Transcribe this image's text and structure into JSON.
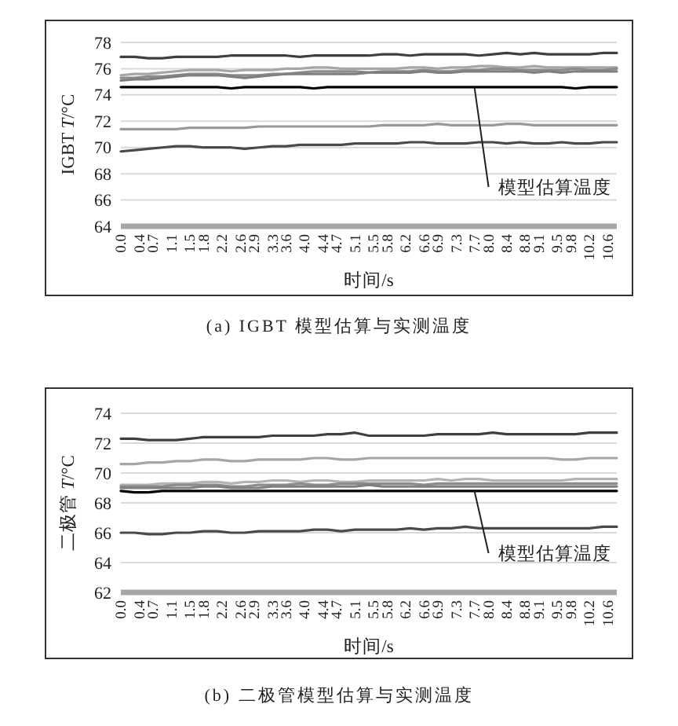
{
  "chart_data": [
    {
      "type": "line",
      "title": "(a) IGBT 模型估算与实测温度",
      "xlabel": "时间/s",
      "ylabel": "IGBT *T*/°C",
      "x": [
        0,
        0.3,
        0.6,
        0.9,
        1.2,
        1.5,
        1.8,
        2.1,
        2.4,
        2.7,
        3,
        3.3,
        3.6,
        3.9,
        4.2,
        4.5,
        4.8,
        5.1,
        5.4,
        5.7,
        6,
        6.3,
        6.6,
        6.9,
        7.2,
        7.5,
        7.8,
        8.1,
        8.4,
        8.7,
        9,
        9.3,
        9.6,
        9.9,
        10.2,
        10.5,
        10.8
      ],
      "xlim": [
        0,
        10.8
      ],
      "xticks": [
        {
          "value": 0,
          "label": "0.0"
        },
        {
          "value": 0.4,
          "label": "0.4"
        },
        {
          "value": 0.7,
          "label": "0.7"
        },
        {
          "value": 1.1,
          "label": "1.1"
        },
        {
          "value": 1.5,
          "label": "1.5"
        },
        {
          "value": 1.8,
          "label": "1.8"
        },
        {
          "value": 2.2,
          "label": "2.2"
        },
        {
          "value": 2.6,
          "label": "2.6"
        },
        {
          "value": 2.9,
          "label": "2.9"
        },
        {
          "value": 3.3,
          "label": "3.3"
        },
        {
          "value": 3.6,
          "label": "3.6"
        },
        {
          "value": 4,
          "label": "4.0"
        },
        {
          "value": 4.4,
          "label": "4.4"
        },
        {
          "value": 4.7,
          "label": "4.7"
        },
        {
          "value": 5.1,
          "label": "5.1"
        },
        {
          "value": 5.5,
          "label": "5.5"
        },
        {
          "value": 5.8,
          "label": "5.8"
        },
        {
          "value": 6.2,
          "label": "6.2"
        },
        {
          "value": 6.6,
          "label": "6.6"
        },
        {
          "value": 6.9,
          "label": "6.9"
        },
        {
          "value": 7.3,
          "label": "7.3"
        },
        {
          "value": 7.7,
          "label": "7.7"
        },
        {
          "value": 8,
          "label": "8.0"
        },
        {
          "value": 8.4,
          "label": "8.4"
        },
        {
          "value": 8.8,
          "label": "8.8"
        },
        {
          "value": 9.1,
          "label": "9.1"
        },
        {
          "value": 9.5,
          "label": "9.5"
        },
        {
          "value": 9.8,
          "label": "9.8"
        },
        {
          "value": 10.2,
          "label": "10.2"
        },
        {
          "value": 10.6,
          "label": "10.6"
        }
      ],
      "ylim": [
        64,
        78
      ],
      "yticks": [
        64,
        66,
        68,
        70,
        72,
        74,
        76,
        78
      ],
      "grid": "y",
      "marker": "none",
      "line_style": "solid",
      "annotations": [
        {
          "text": "模型估算温度",
          "x": 7.7,
          "y": 74.6
        }
      ],
      "series": [
        {
          "color": "#3f3f3f",
          "values": [
            76.9,
            76.9,
            76.8,
            76.8,
            76.9,
            76.9,
            76.9,
            76.9,
            77.0,
            77.0,
            77.0,
            77.0,
            77.0,
            76.9,
            77.0,
            77.0,
            77.0,
            77.0,
            77.0,
            77.1,
            77.1,
            77.0,
            77.1,
            77.1,
            77.1,
            77.1,
            77.0,
            77.1,
            77.2,
            77.1,
            77.2,
            77.1,
            77.1,
            77.1,
            77.1,
            77.2,
            77.2
          ]
        },
        {
          "color": "#a6a6a6",
          "values": [
            75.5,
            75.6,
            75.6,
            75.7,
            75.8,
            75.9,
            75.9,
            75.9,
            75.8,
            75.9,
            75.9,
            75.9,
            76.0,
            76.0,
            76.1,
            76.1,
            76.0,
            76.0,
            76.0,
            76.0,
            76.0,
            76.1,
            76.1,
            76.0,
            76.1,
            76.1,
            76.2,
            76.2,
            76.1,
            76.1,
            76.2,
            76.1,
            76.1,
            76.1,
            76.1,
            76.1,
            76.1
          ]
        },
        {
          "color": "#8c8c8c",
          "values": [
            75.3,
            75.3,
            75.4,
            75.4,
            75.5,
            75.6,
            75.6,
            75.6,
            75.5,
            75.5,
            75.5,
            75.6,
            75.6,
            75.7,
            75.8,
            75.8,
            75.8,
            75.8,
            75.7,
            75.8,
            75.8,
            75.8,
            75.9,
            75.8,
            75.8,
            75.9,
            75.9,
            76.0,
            76.0,
            75.9,
            75.9,
            75.9,
            75.9,
            76.0,
            75.9,
            75.9,
            76.0
          ]
        },
        {
          "color": "#7f7f7f",
          "values": [
            75.1,
            75.2,
            75.2,
            75.3,
            75.4,
            75.5,
            75.5,
            75.5,
            75.4,
            75.3,
            75.4,
            75.5,
            75.6,
            75.6,
            75.6,
            75.6,
            75.6,
            75.6,
            75.7,
            75.7,
            75.7,
            75.7,
            75.8,
            75.7,
            75.7,
            75.8,
            75.8,
            75.8,
            75.8,
            75.8,
            75.7,
            75.8,
            75.7,
            75.8,
            75.8,
            75.8,
            75.8
          ]
        },
        {
          "color": "#000000",
          "values": [
            74.6,
            74.6,
            74.6,
            74.6,
            74.6,
            74.6,
            74.6,
            74.6,
            74.5,
            74.6,
            74.6,
            74.6,
            74.6,
            74.6,
            74.5,
            74.6,
            74.6,
            74.6,
            74.6,
            74.6,
            74.6,
            74.6,
            74.6,
            74.6,
            74.6,
            74.6,
            74.6,
            74.6,
            74.6,
            74.6,
            74.6,
            74.6,
            74.6,
            74.5,
            74.6,
            74.6,
            74.6
          ]
        },
        {
          "color": "#999999",
          "values": [
            71.4,
            71.4,
            71.4,
            71.4,
            71.4,
            71.5,
            71.5,
            71.5,
            71.5,
            71.5,
            71.6,
            71.6,
            71.6,
            71.6,
            71.6,
            71.6,
            71.6,
            71.6,
            71.6,
            71.7,
            71.7,
            71.7,
            71.7,
            71.8,
            71.7,
            71.7,
            71.7,
            71.7,
            71.8,
            71.8,
            71.7,
            71.7,
            71.7,
            71.7,
            71.7,
            71.7,
            71.7
          ]
        },
        {
          "color": "#4a4a4a",
          "values": [
            69.7,
            69.8,
            69.9,
            70.0,
            70.1,
            70.1,
            70.0,
            70.0,
            70.0,
            69.9,
            70.0,
            70.1,
            70.1,
            70.2,
            70.2,
            70.2,
            70.2,
            70.3,
            70.3,
            70.3,
            70.3,
            70.4,
            70.4,
            70.3,
            70.3,
            70.3,
            70.4,
            70.4,
            70.3,
            70.4,
            70.3,
            70.3,
            70.4,
            70.3,
            70.3,
            70.4,
            70.4
          ]
        }
      ]
    },
    {
      "type": "line",
      "title": "(b) 二极管模型估算与实测温度",
      "xlabel": "时间/s",
      "ylabel": "二极管 *T*/°C",
      "x": [
        0,
        0.3,
        0.6,
        0.9,
        1.2,
        1.5,
        1.8,
        2.1,
        2.4,
        2.7,
        3,
        3.3,
        3.6,
        3.9,
        4.2,
        4.5,
        4.8,
        5.1,
        5.4,
        5.7,
        6,
        6.3,
        6.6,
        6.9,
        7.2,
        7.5,
        7.8,
        8.1,
        8.4,
        8.7,
        9,
        9.3,
        9.6,
        9.9,
        10.2,
        10.5,
        10.8
      ],
      "xlim": [
        0,
        10.8
      ],
      "xticks": [
        {
          "value": 0,
          "label": "0.0"
        },
        {
          "value": 0.4,
          "label": "0.4"
        },
        {
          "value": 0.7,
          "label": "0.7"
        },
        {
          "value": 1.1,
          "label": "1.1"
        },
        {
          "value": 1.5,
          "label": "1.5"
        },
        {
          "value": 1.8,
          "label": "1.8"
        },
        {
          "value": 2.2,
          "label": "2.2"
        },
        {
          "value": 2.6,
          "label": "2.6"
        },
        {
          "value": 2.9,
          "label": "2.9"
        },
        {
          "value": 3.3,
          "label": "3.3"
        },
        {
          "value": 3.6,
          "label": "3.6"
        },
        {
          "value": 4,
          "label": "4.0"
        },
        {
          "value": 4.4,
          "label": "4.4"
        },
        {
          "value": 4.7,
          "label": "4.7"
        },
        {
          "value": 5.1,
          "label": "5.1"
        },
        {
          "value": 5.5,
          "label": "5.5"
        },
        {
          "value": 5.8,
          "label": "5.8"
        },
        {
          "value": 6.2,
          "label": "6.2"
        },
        {
          "value": 6.6,
          "label": "6.6"
        },
        {
          "value": 6.9,
          "label": "6.9"
        },
        {
          "value": 7.3,
          "label": "7.3"
        },
        {
          "value": 7.7,
          "label": "7.7"
        },
        {
          "value": 8,
          "label": "8.0"
        },
        {
          "value": 8.4,
          "label": "8.4"
        },
        {
          "value": 8.8,
          "label": "8.8"
        },
        {
          "value": 9.1,
          "label": "9.1"
        },
        {
          "value": 9.5,
          "label": "9.5"
        },
        {
          "value": 9.8,
          "label": "9.8"
        },
        {
          "value": 10.2,
          "label": "10.2"
        },
        {
          "value": 10.6,
          "label": "10.6"
        }
      ],
      "ylim": [
        62,
        74
      ],
      "yticks": [
        62,
        64,
        66,
        68,
        70,
        72,
        74
      ],
      "grid": "y",
      "marker": "none",
      "line_style": "solid",
      "annotations": [
        {
          "text": "模型估算温度",
          "x": 7.7,
          "y": 68.8
        }
      ],
      "series": [
        {
          "color": "#3f3f3f",
          "values": [
            72.3,
            72.3,
            72.2,
            72.2,
            72.2,
            72.3,
            72.4,
            72.4,
            72.4,
            72.4,
            72.4,
            72.5,
            72.5,
            72.5,
            72.5,
            72.6,
            72.6,
            72.7,
            72.5,
            72.5,
            72.5,
            72.5,
            72.5,
            72.6,
            72.6,
            72.6,
            72.6,
            72.7,
            72.6,
            72.6,
            72.6,
            72.6,
            72.6,
            72.6,
            72.7,
            72.7,
            72.7
          ]
        },
        {
          "color": "#a6a6a6",
          "values": [
            70.6,
            70.6,
            70.7,
            70.7,
            70.8,
            70.8,
            70.9,
            70.9,
            70.8,
            70.8,
            70.9,
            70.9,
            70.9,
            70.9,
            71.0,
            71.0,
            70.9,
            70.9,
            71.0,
            71.0,
            71.0,
            71.0,
            71.0,
            71.0,
            71.0,
            71.0,
            71.0,
            71.0,
            71.0,
            71.0,
            71.0,
            71.0,
            70.9,
            70.9,
            71.0,
            71.0,
            71.0
          ]
        },
        {
          "color": "#b3b3b3",
          "values": [
            69.2,
            69.2,
            69.2,
            69.3,
            69.3,
            69.3,
            69.4,
            69.4,
            69.3,
            69.4,
            69.4,
            69.5,
            69.5,
            69.4,
            69.5,
            69.5,
            69.4,
            69.4,
            69.5,
            69.5,
            69.5,
            69.5,
            69.5,
            69.6,
            69.5,
            69.6,
            69.6,
            69.5,
            69.5,
            69.5,
            69.5,
            69.5,
            69.5,
            69.6,
            69.6,
            69.6,
            69.6
          ]
        },
        {
          "color": "#8c8c8c",
          "values": [
            69.1,
            69.1,
            69.1,
            69.1,
            69.2,
            69.2,
            69.2,
            69.2,
            69.1,
            69.1,
            69.2,
            69.2,
            69.2,
            69.3,
            69.2,
            69.2,
            69.3,
            69.3,
            69.3,
            69.3,
            69.3,
            69.3,
            69.2,
            69.3,
            69.3,
            69.3,
            69.3,
            69.3,
            69.3,
            69.3,
            69.3,
            69.3,
            69.3,
            69.3,
            69.3,
            69.3,
            69.3
          ]
        },
        {
          "color": "#7f7f7f",
          "values": [
            69.0,
            69.0,
            69.0,
            69.0,
            69.0,
            69.0,
            69.1,
            69.1,
            69.0,
            69.0,
            69.0,
            69.1,
            69.1,
            69.1,
            69.1,
            69.1,
            69.1,
            69.1,
            69.2,
            69.1,
            69.1,
            69.1,
            69.1,
            69.1,
            69.1,
            69.1,
            69.1,
            69.1,
            69.1,
            69.1,
            69.1,
            69.1,
            69.1,
            69.1,
            69.1,
            69.1,
            69.1
          ]
        },
        {
          "color": "#000000",
          "values": [
            68.8,
            68.7,
            68.7,
            68.8,
            68.8,
            68.8,
            68.8,
            68.8,
            68.8,
            68.8,
            68.8,
            68.8,
            68.8,
            68.8,
            68.8,
            68.8,
            68.8,
            68.8,
            68.8,
            68.8,
            68.8,
            68.8,
            68.8,
            68.8,
            68.8,
            68.8,
            68.8,
            68.8,
            68.8,
            68.8,
            68.8,
            68.8,
            68.8,
            68.8,
            68.8,
            68.8,
            68.8
          ]
        },
        {
          "color": "#4a4a4a",
          "values": [
            66.0,
            66.0,
            65.9,
            65.9,
            66.0,
            66.0,
            66.1,
            66.1,
            66.0,
            66.0,
            66.1,
            66.1,
            66.1,
            66.1,
            66.2,
            66.2,
            66.1,
            66.2,
            66.2,
            66.2,
            66.2,
            66.3,
            66.2,
            66.3,
            66.3,
            66.4,
            66.3,
            66.3,
            66.3,
            66.3,
            66.3,
            66.3,
            66.3,
            66.3,
            66.3,
            66.4,
            66.4
          ]
        }
      ]
    }
  ]
}
